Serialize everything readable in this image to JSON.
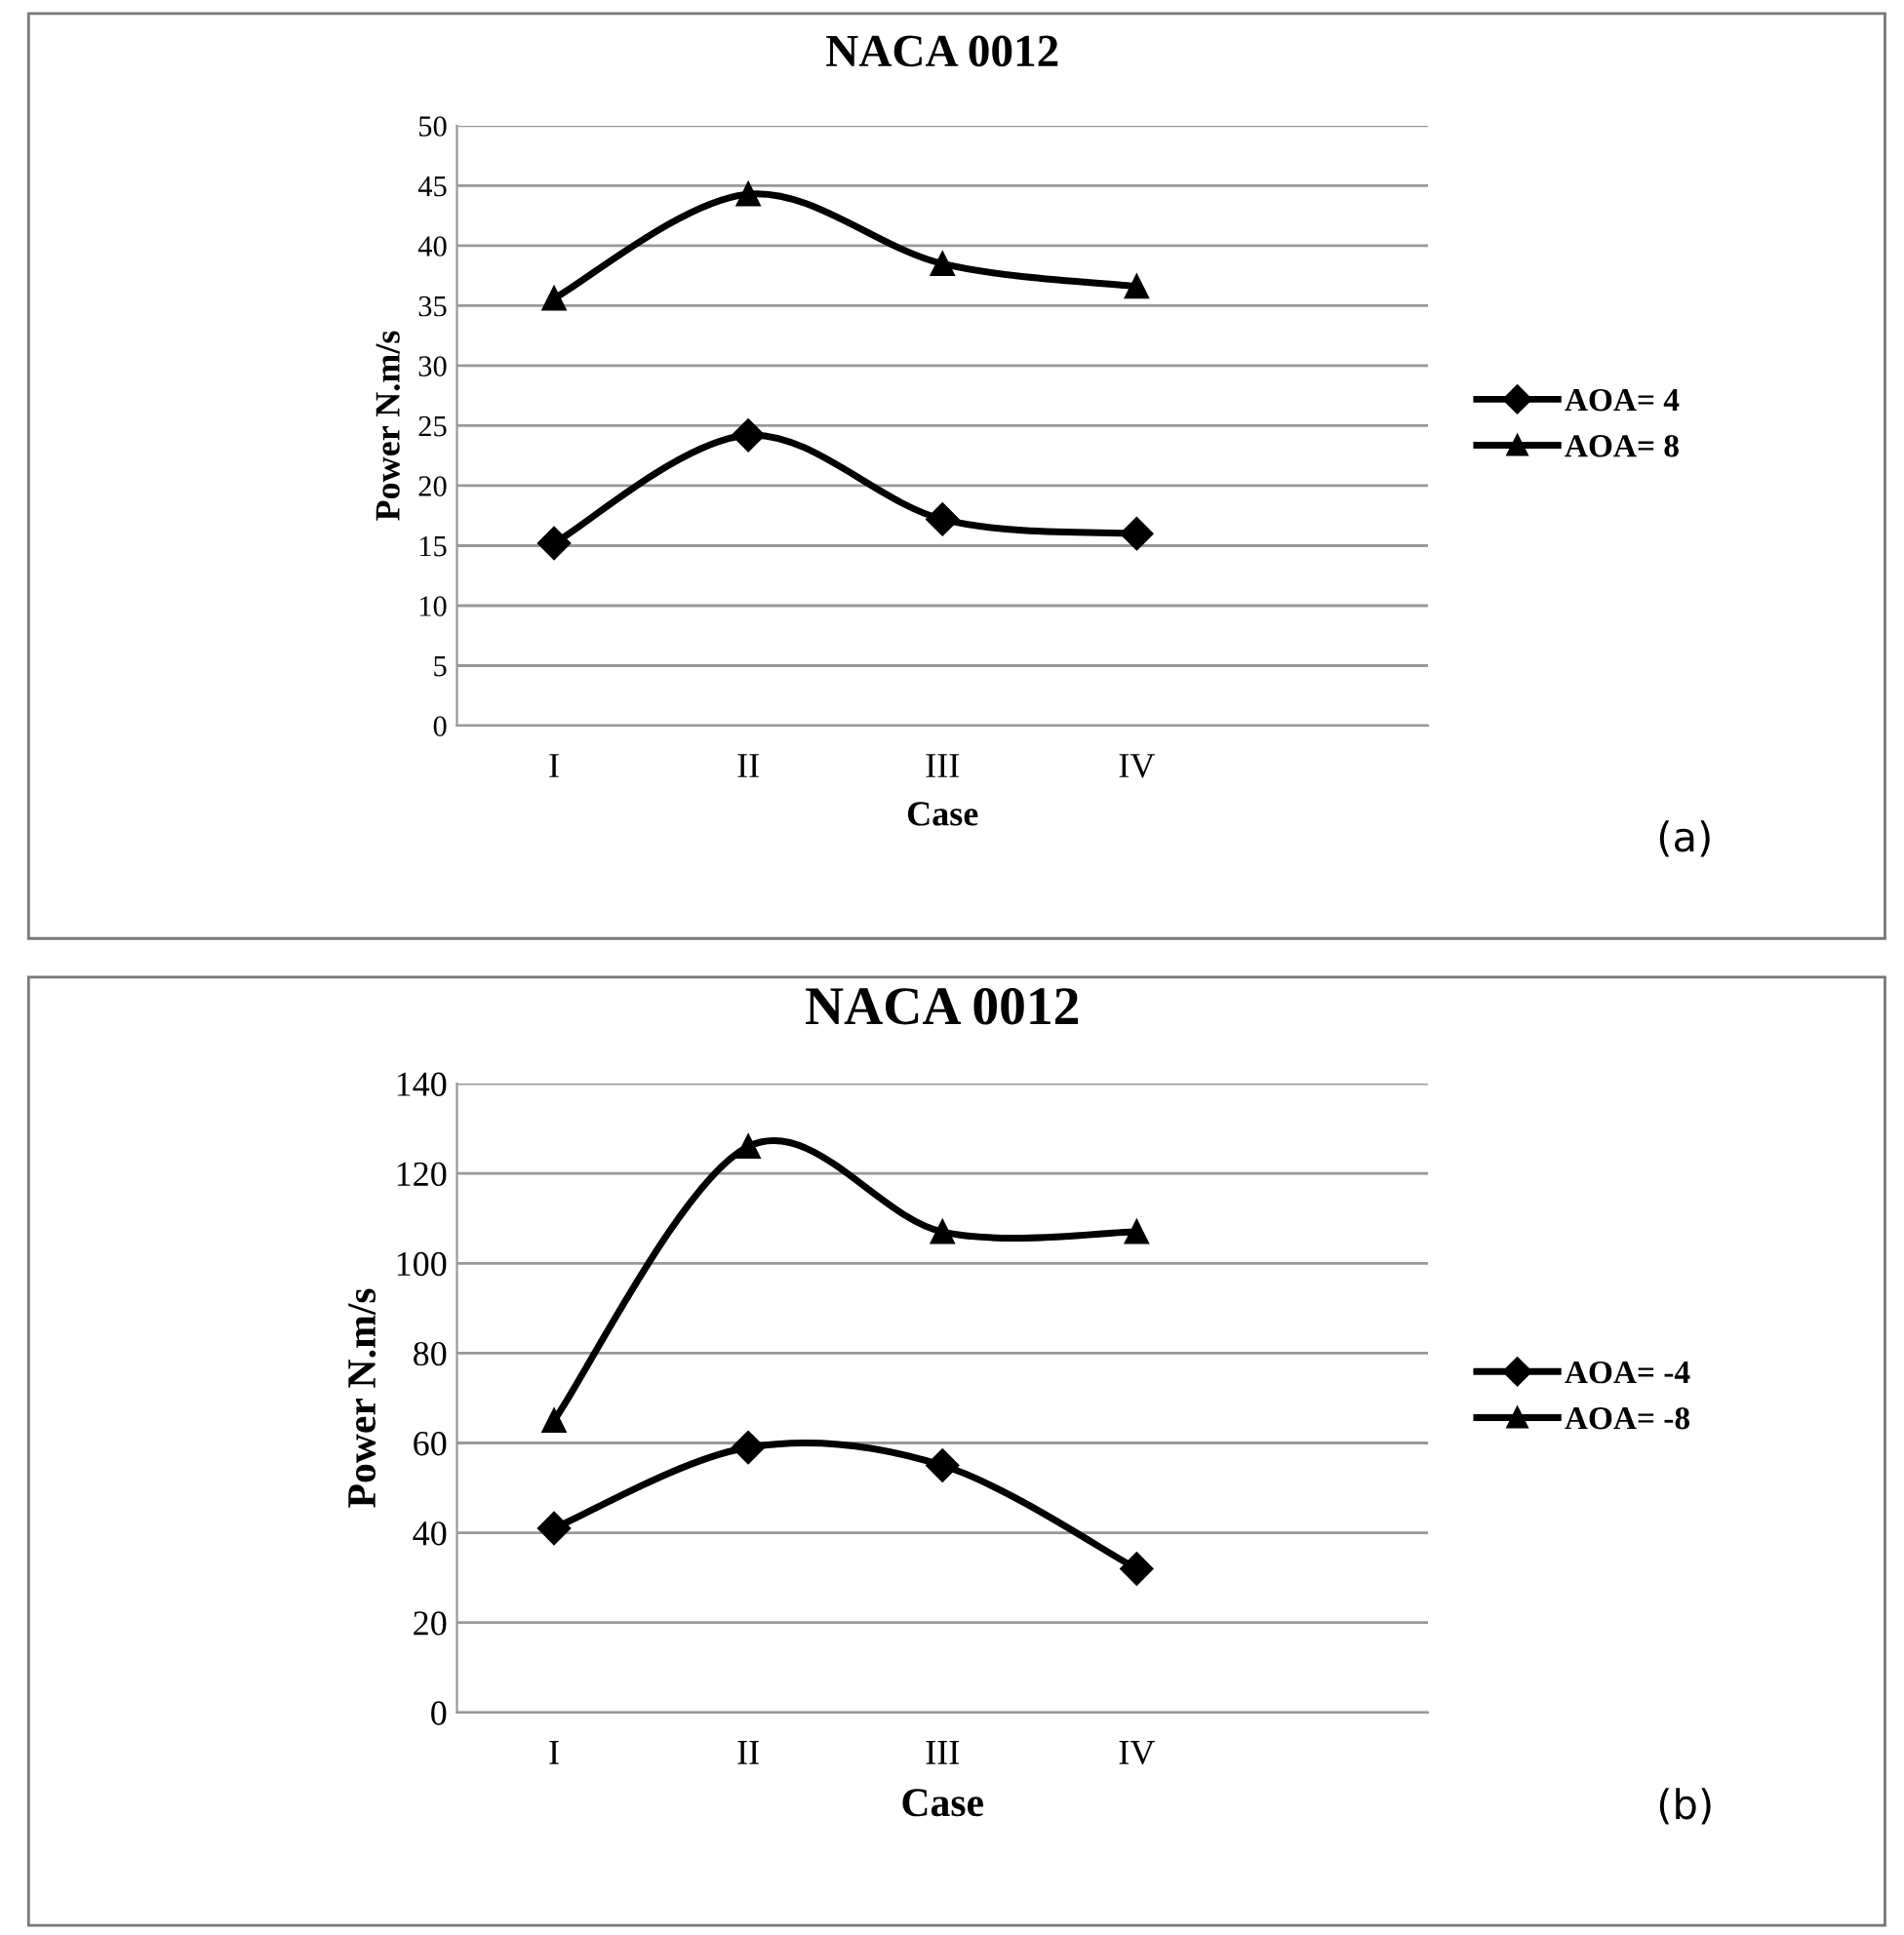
{
  "chart_data": [
    {
      "type": "line",
      "title": "NACA 0012",
      "xlabel": "Case",
      "ylabel": "Power N.m/s",
      "categories": [
        "I",
        "II",
        "III",
        "IV",
        null
      ],
      "ylim": [
        0,
        50
      ],
      "yticks": [
        0,
        5,
        10,
        15,
        20,
        25,
        30,
        35,
        40,
        45,
        50
      ],
      "grid": "y",
      "legend": "right",
      "annotations": [
        "(a)"
      ],
      "series": [
        {
          "name": "AOA= 4",
          "color": "#000000",
          "marker": "diamond",
          "values": [
            15.2,
            24.2,
            17.2,
            16.0,
            null
          ]
        },
        {
          "name": "AOA= 8",
          "color": "#000000",
          "marker": "triangle",
          "values": [
            35.6,
            44.3,
            38.5,
            36.6,
            null
          ]
        }
      ]
    },
    {
      "type": "line",
      "title": "NACA 0012",
      "xlabel": "Case",
      "ylabel": "Power N.m/s",
      "categories": [
        "I",
        "II",
        "III",
        "IV",
        null
      ],
      "ylim": [
        0,
        140
      ],
      "yticks": [
        0,
        20,
        40,
        60,
        80,
        100,
        120,
        140
      ],
      "grid": "y",
      "legend": "right",
      "annotations": [
        "(b)"
      ],
      "series": [
        {
          "name": "AOA= -4",
          "color": "#000000",
          "marker": "diamond",
          "values": [
            41,
            59,
            55,
            32,
            null
          ]
        },
        {
          "name": "AOA= -8",
          "color": "#000000",
          "marker": "triangle",
          "values": [
            65,
            126,
            107,
            107,
            null
          ]
        }
      ]
    }
  ]
}
